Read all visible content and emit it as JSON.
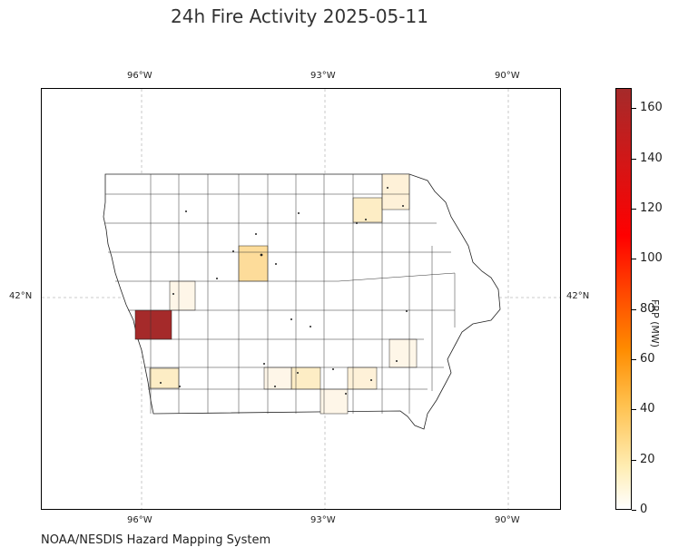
{
  "title": "24h Fire Activity 2025-05-11",
  "footer": "NOAA/NESDIS Hazard Mapping System",
  "map": {
    "region": "Iowa counties",
    "lon_labels": [
      "96°W",
      "93°W",
      "90°W"
    ],
    "lat_labels": [
      "42°N"
    ],
    "gridlines": true,
    "highlighted_counties": [
      {
        "frp": 165,
        "color": "#a52a2a"
      },
      {
        "frp": 24,
        "color": "#fddc9a"
      },
      {
        "frp": 13,
        "color": "#fdedc5"
      },
      {
        "frp": 8,
        "color": "#fef1d8"
      },
      {
        "frp": 5,
        "color": "#fef6e8"
      }
    ]
  },
  "colorbar": {
    "title": "FRP (MW)",
    "ticks": [
      "0",
      "20",
      "40",
      "60",
      "80",
      "100",
      "120",
      "140",
      "160"
    ],
    "min": 0,
    "max": 168,
    "colors": [
      "#ffffff",
      "#ffc04d",
      "#ff8c00",
      "#ff0000",
      "#a52a2a"
    ]
  }
}
